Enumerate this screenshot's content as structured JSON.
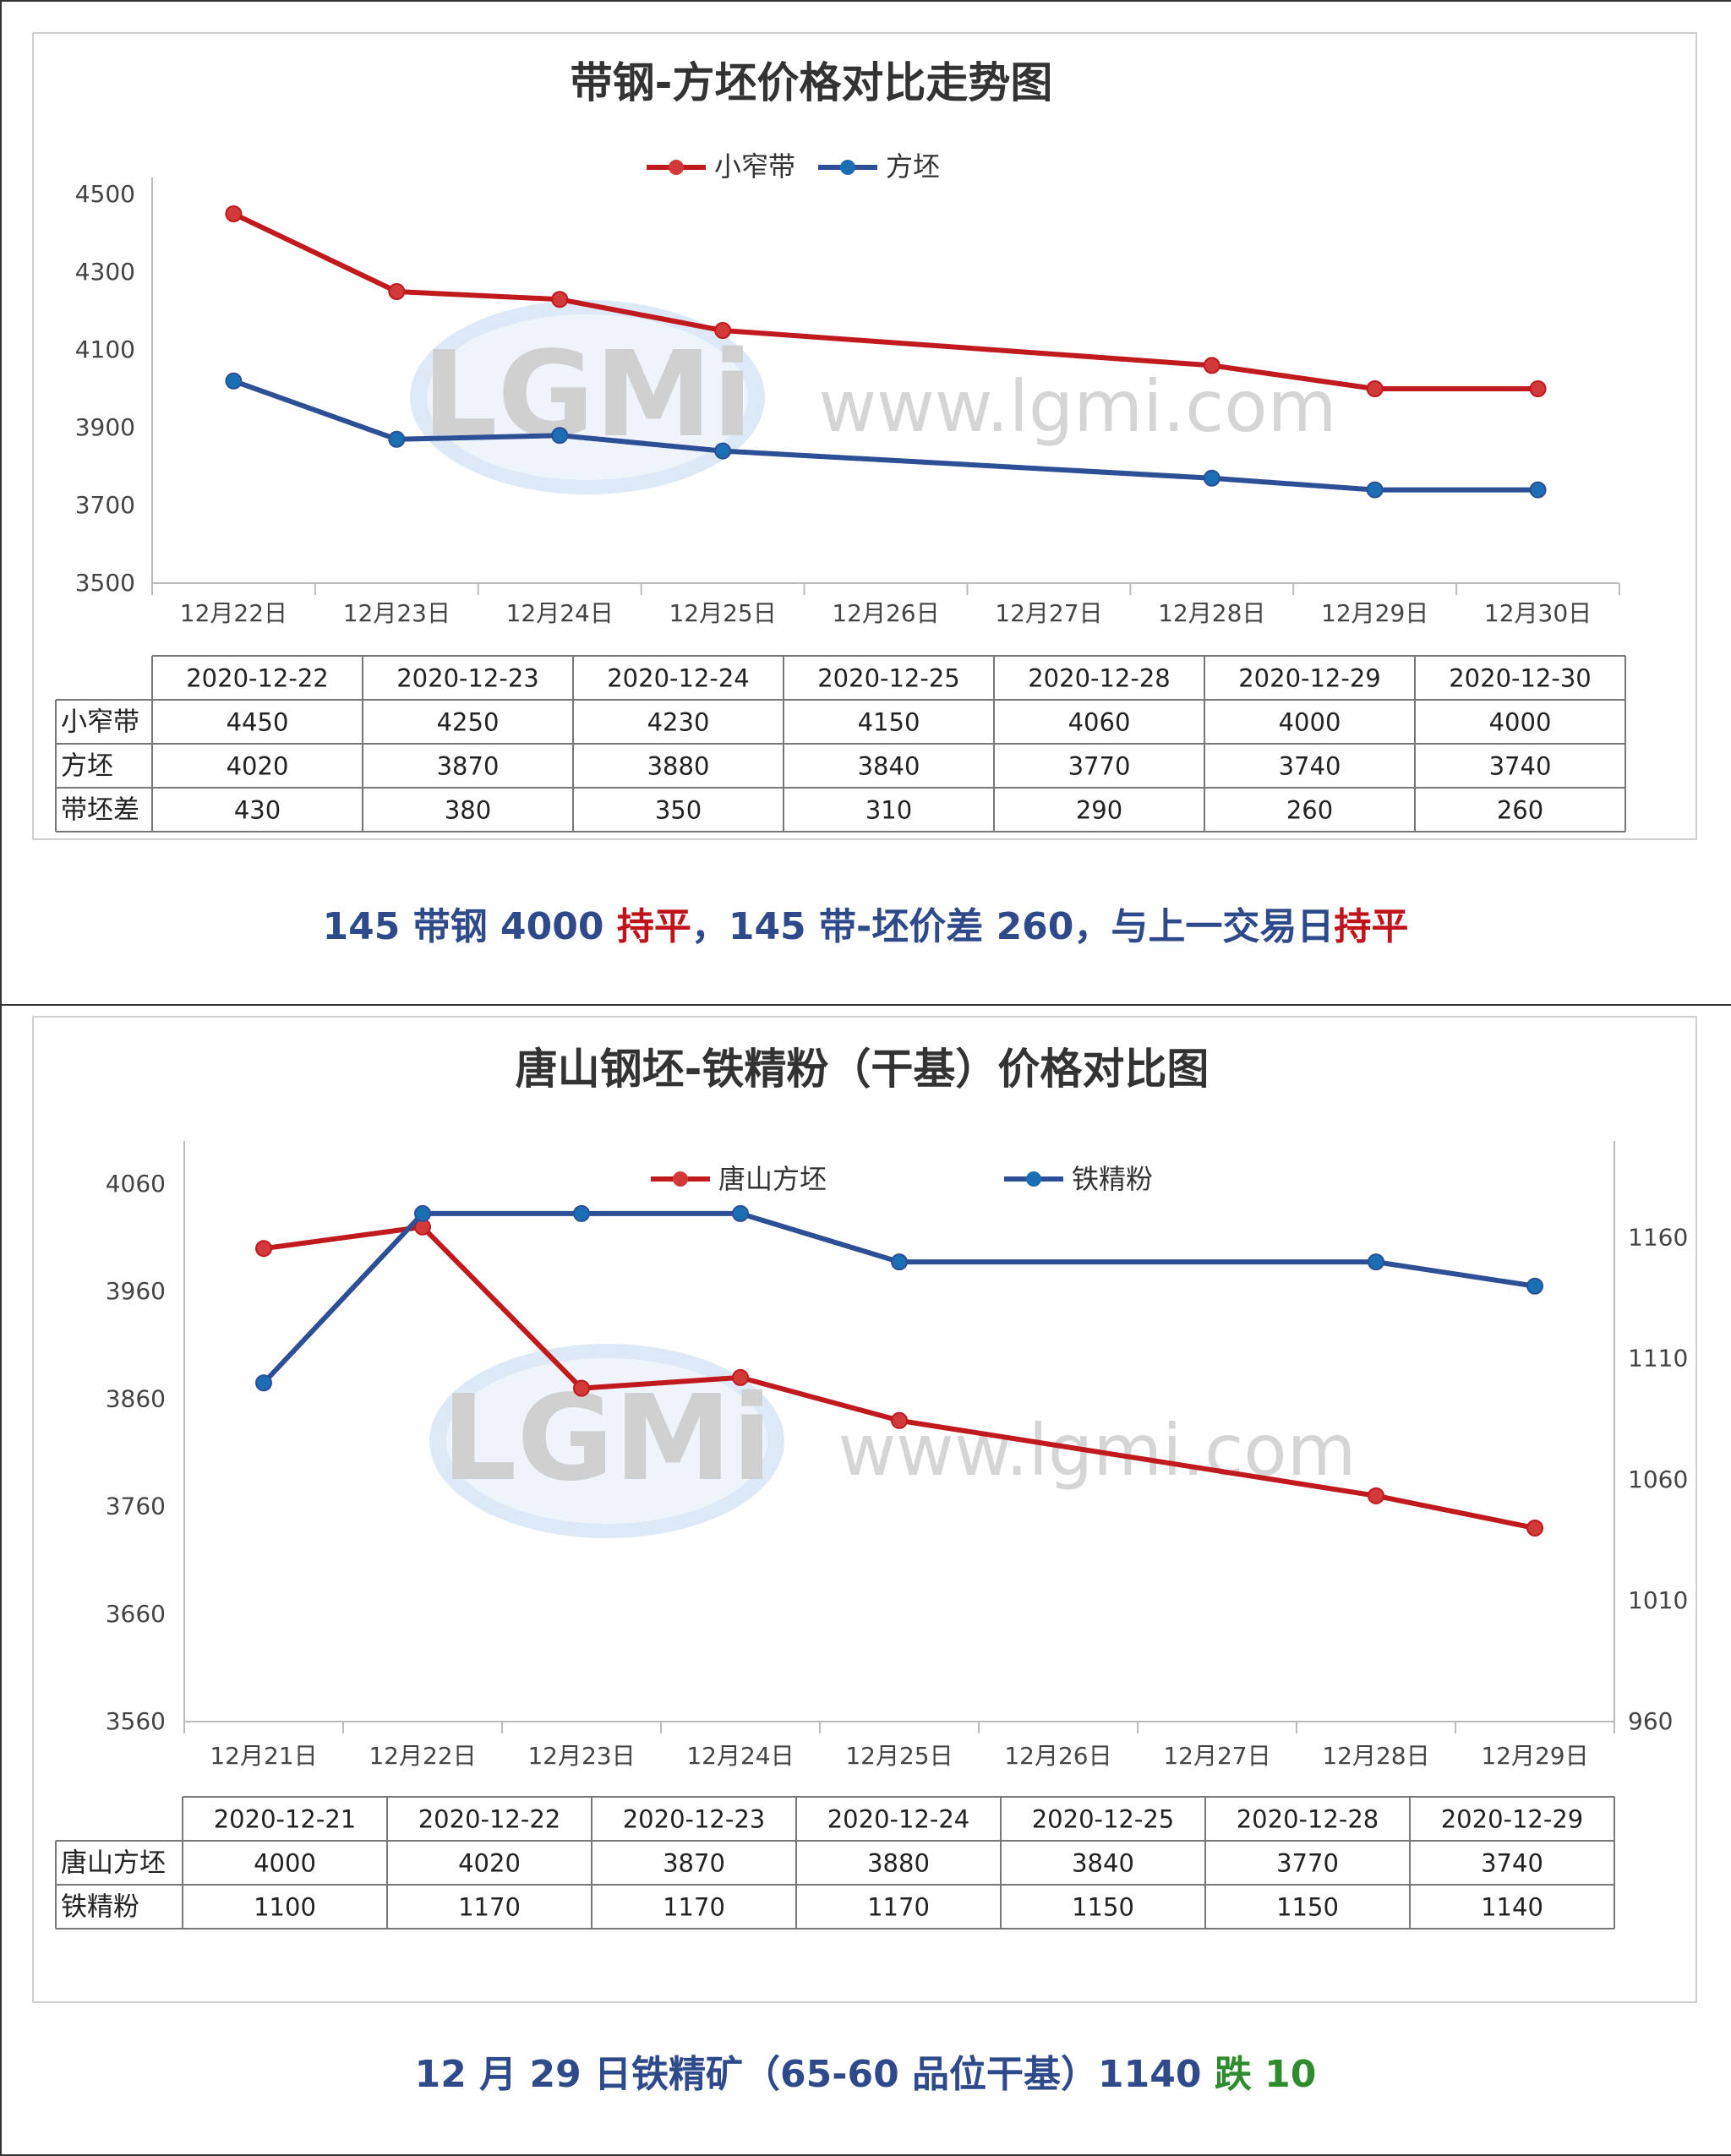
{
  "colors": {
    "red": "#c01a1f",
    "blue": "#2d4f96",
    "redMarker": "#d23a3a",
    "blueMarker": "#1a6fb4",
    "summaryBlue": "#2e4a8a",
    "summaryRed": "#c0141c",
    "summaryGreen": "#2e8b2e"
  },
  "watermark": {
    "logo": "LGMi",
    "url": "www.lgmi.com"
  },
  "chart1": {
    "title": "带钢-方坯价格对比走势图",
    "chart_data": {
      "type": "line",
      "title": "带钢-方坯价格对比走势图",
      "categories": [
        "12月22日",
        "12月23日",
        "12月24日",
        "12月25日",
        "12月26日",
        "12月27日",
        "12月28日",
        "12月29日",
        "12月30日"
      ],
      "ylim": [
        3500,
        4500
      ],
      "yticks": [
        "4500",
        "4300",
        "4100",
        "3900",
        "3700",
        "3500"
      ],
      "legend": "top-center",
      "series": [
        {
          "name": "小窄带",
          "color": "#c01a1f",
          "values": [
            4450,
            4250,
            4230,
            4150,
            null,
            null,
            4060,
            4000,
            4000
          ]
        },
        {
          "name": "方坯",
          "color": "#2d4f96",
          "values": [
            4020,
            3870,
            3880,
            3840,
            null,
            null,
            3770,
            3740,
            3740
          ]
        }
      ]
    },
    "table": {
      "dates": [
        "2020-12-22",
        "2020-12-23",
        "2020-12-24",
        "2020-12-25",
        "2020-12-28",
        "2020-12-29",
        "2020-12-30"
      ],
      "rows": [
        {
          "label": "小窄带",
          "values": [
            "4450",
            "4250",
            "4230",
            "4150",
            "4060",
            "4000",
            "4000"
          ]
        },
        {
          "label": "方坯",
          "values": [
            "4020",
            "3870",
            "3880",
            "3840",
            "3770",
            "3740",
            "3740"
          ]
        },
        {
          "label": "带坯差",
          "values": [
            "430",
            "380",
            "350",
            "310",
            "290",
            "260",
            "260"
          ]
        }
      ]
    },
    "summary": {
      "p1": "145 带钢 4000 ",
      "p2": "持平",
      "p3": "，145 带-坯价差 260，与上一交易日",
      "p4": "持平"
    }
  },
  "chart2": {
    "title": "唐山钢坯-铁精粉（干基）价格对比图",
    "chart_data": {
      "type": "line",
      "title": "唐山钢坯-铁精粉（干基）价格对比图",
      "categories": [
        "12月21日",
        "12月22日",
        "12月23日",
        "12月24日",
        "12月25日",
        "12月26日",
        "12月27日",
        "12月28日",
        "12月29日"
      ],
      "ylim": [
        3560,
        4100
      ],
      "yticks": [
        "4060",
        "3960",
        "3860",
        "3760",
        "3660",
        "3560"
      ],
      "y2lim": [
        960,
        1200
      ],
      "y2ticks": [
        "1160",
        "1110",
        "1060",
        "1010",
        "960"
      ],
      "legend": "top",
      "series": [
        {
          "name": "唐山方坯",
          "axis": "left",
          "color": "#c01a1f",
          "values": [
            4000,
            4020,
            3870,
            3880,
            3840,
            null,
            null,
            3770,
            3740
          ]
        },
        {
          "name": "铁精粉",
          "axis": "right",
          "color": "#2d4f96",
          "values": [
            1100,
            1170,
            1170,
            1170,
            1150,
            null,
            null,
            1150,
            1140
          ]
        }
      ]
    },
    "table": {
      "dates": [
        "2020-12-21",
        "2020-12-22",
        "2020-12-23",
        "2020-12-24",
        "2020-12-25",
        "2020-12-28",
        "2020-12-29"
      ],
      "rows": [
        {
          "label": "唐山方坯",
          "values": [
            "4000",
            "4020",
            "3870",
            "3880",
            "3840",
            "3770",
            "3740"
          ]
        },
        {
          "label": "铁精粉",
          "values": [
            "1100",
            "1170",
            "1170",
            "1170",
            "1150",
            "1150",
            "1140"
          ]
        }
      ]
    },
    "summary": {
      "p1": "12 月 29 日铁精矿（65-60 品位干基）1140 ",
      "p2": "跌 10"
    }
  }
}
